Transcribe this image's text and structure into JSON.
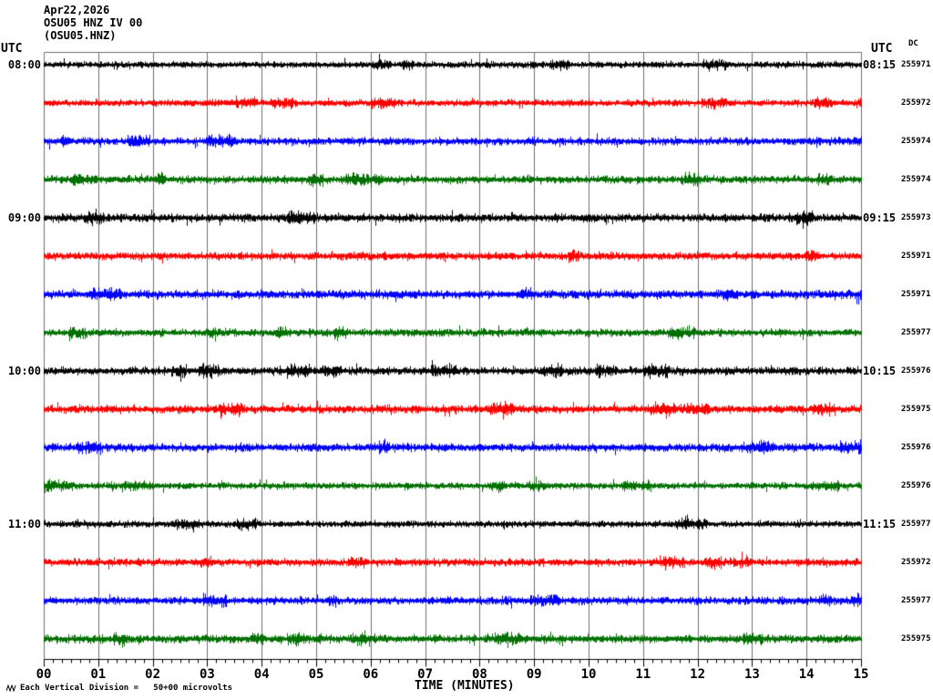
{
  "header": {
    "date": "Apr22,2026",
    "station_line": "OSU05 HNZ IV 00",
    "channel_line": "(OSU05.HNZ)"
  },
  "labels": {
    "utc_left": "UTC",
    "utc_right": "UTC",
    "dc_column": "DC",
    "x_axis_title": "TIME (MINUTES)",
    "scale_note": "Each Vertical Division =   50+00 microvolts"
  },
  "colors": {
    "trace_black": "#000000",
    "trace_red": "#ff0000",
    "trace_blue": "#0000ff",
    "trace_green": "#007000",
    "gridline": "#6f6f6f",
    "axis": "#000000",
    "background": "#ffffff"
  },
  "chart_data": {
    "type": "line",
    "subtype": "seismogram-helicorder",
    "title": "OSU05 HNZ IV 00 (OSU05.HNZ) Apr22,2026",
    "xlabel": "TIME (MINUTES)",
    "x_range_minutes": [
      0,
      15
    ],
    "x_tick_labels": [
      "00",
      "01",
      "02",
      "03",
      "04",
      "05",
      "06",
      "07",
      "08",
      "09",
      "10",
      "11",
      "12",
      "13",
      "14",
      "15"
    ],
    "minor_ticks_per_minute": 5,
    "grid": "vertical lines at every minute",
    "legend": "none",
    "amplitude_scale": "Each Vertical Division = 50+00 microvolts",
    "content_description": "16 rows of continuous ambient seismic background noise, 15 minutes per row, no distinct events; colors cycle black/red/blue/green",
    "rows": [
      {
        "row": 1,
        "start_utc": "08:00",
        "end_utc": "08:15",
        "dc": "255971",
        "color": "#000000"
      },
      {
        "row": 2,
        "start_utc": "",
        "end_utc": "",
        "dc": "255972",
        "color": "#ff0000"
      },
      {
        "row": 3,
        "start_utc": "",
        "end_utc": "",
        "dc": "255974",
        "color": "#0000ff"
      },
      {
        "row": 4,
        "start_utc": "",
        "end_utc": "",
        "dc": "255974",
        "color": "#007000"
      },
      {
        "row": 5,
        "start_utc": "09:00",
        "end_utc": "09:15",
        "dc": "255973",
        "color": "#000000"
      },
      {
        "row": 6,
        "start_utc": "",
        "end_utc": "",
        "dc": "255971",
        "color": "#ff0000"
      },
      {
        "row": 7,
        "start_utc": "",
        "end_utc": "",
        "dc": "255971",
        "color": "#0000ff"
      },
      {
        "row": 8,
        "start_utc": "",
        "end_utc": "",
        "dc": "255977",
        "color": "#007000"
      },
      {
        "row": 9,
        "start_utc": "10:00",
        "end_utc": "10:15",
        "dc": "255976",
        "color": "#000000"
      },
      {
        "row": 10,
        "start_utc": "",
        "end_utc": "",
        "dc": "255975",
        "color": "#ff0000"
      },
      {
        "row": 11,
        "start_utc": "",
        "end_utc": "",
        "dc": "255976",
        "color": "#0000ff"
      },
      {
        "row": 12,
        "start_utc": "",
        "end_utc": "",
        "dc": "255976",
        "color": "#007000"
      },
      {
        "row": 13,
        "start_utc": "11:00",
        "end_utc": "11:15",
        "dc": "255977",
        "color": "#000000"
      },
      {
        "row": 14,
        "start_utc": "",
        "end_utc": "",
        "dc": "255972",
        "color": "#ff0000"
      },
      {
        "row": 15,
        "start_utc": "",
        "end_utc": "",
        "dc": "255977",
        "color": "#0000ff"
      },
      {
        "row": 16,
        "start_utc": "",
        "end_utc": "",
        "dc": "255975",
        "color": "#007000"
      }
    ]
  }
}
